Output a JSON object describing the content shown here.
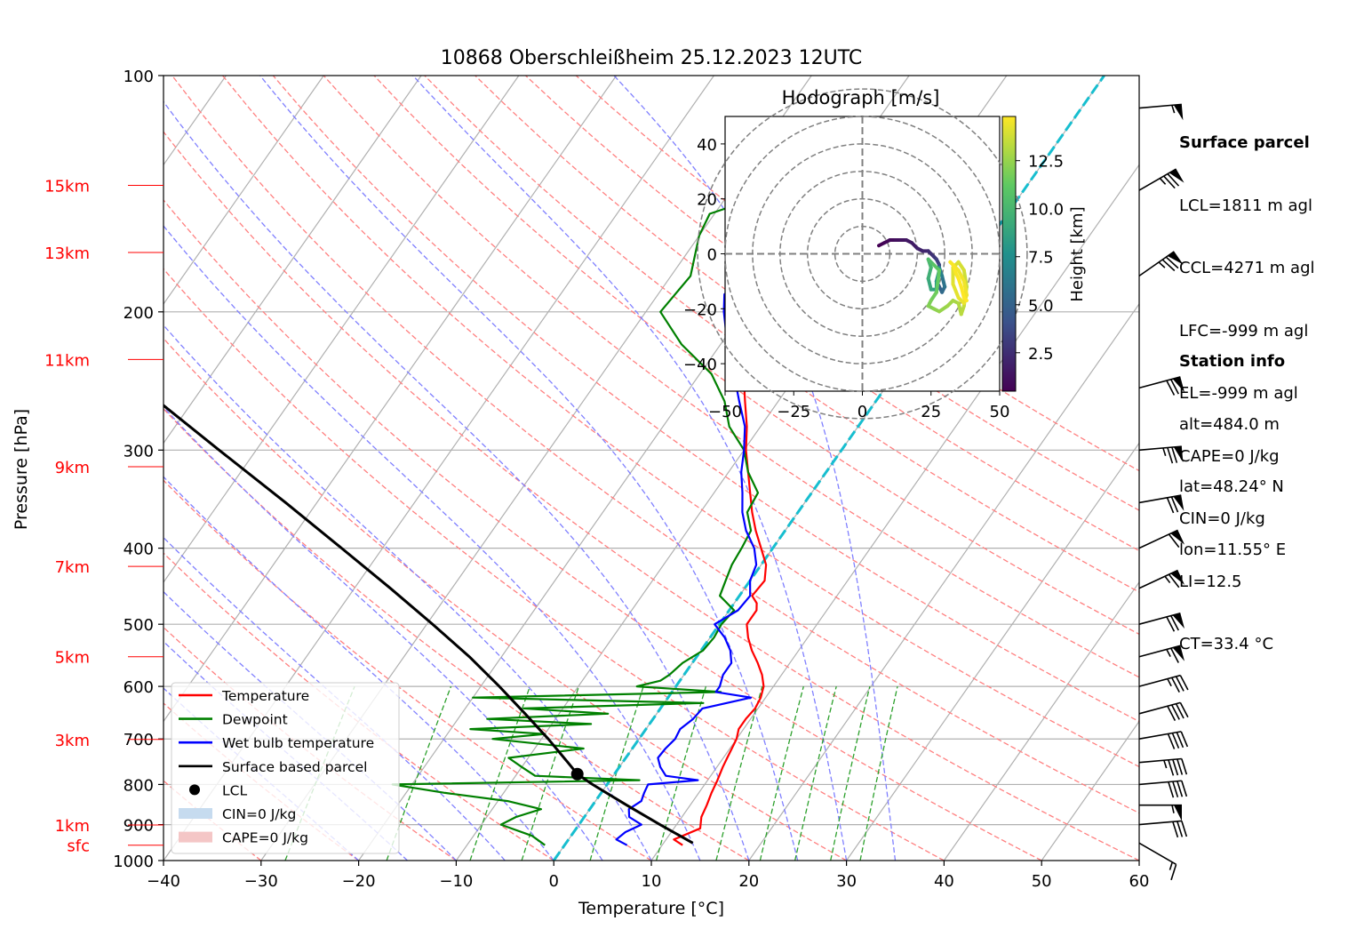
{
  "chart_data": {
    "type": "skew-t",
    "title": "10868 Oberschleißheim 25.12.2023 12UTC",
    "xlabel": "Temperature [°C]",
    "ylabel": "Pressure [hPa]",
    "xlim": [
      -40,
      60
    ],
    "ylim_hpa": [
      1000,
      100
    ],
    "x_ticks": [
      "−40",
      "−30",
      "−20",
      "−10",
      "0",
      "10",
      "20",
      "30",
      "40",
      "50",
      "60"
    ],
    "y_ticks": [
      "100",
      "200",
      "300",
      "400",
      "500",
      "600",
      "700",
      "800",
      "900",
      "1000"
    ],
    "height_labels": [
      {
        "label": "15km",
        "p": 138
      },
      {
        "label": "13km",
        "p": 168
      },
      {
        "label": "11km",
        "p": 230
      },
      {
        "label": "9km",
        "p": 315
      },
      {
        "label": "7km",
        "p": 422
      },
      {
        "label": "5km",
        "p": 550
      },
      {
        "label": "3km",
        "p": 701
      },
      {
        "label": "1km",
        "p": 901
      },
      {
        "label": "sfc",
        "p": 956
      }
    ],
    "legend": {
      "position": "lower-left",
      "entries": [
        "Temperature",
        "Dewpoint",
        "Wet bulb temperature",
        "Surface based parcel",
        "LCL",
        "CIN=0 J/kg",
        "CAPE=0 J/kg"
      ]
    },
    "colors": {
      "temperature": "#ff0000",
      "dewpoint": "#008000",
      "wetbulb": "#0000ff",
      "parcel": "#000000",
      "dry_adiabat": "#ff8080",
      "moist_adiabat": "#8080ff",
      "mixing_ratio": "#2ca02c",
      "isotherm_zero": "#17becf",
      "cin": "#c6dbef",
      "cape": "#f4c6c6"
    },
    "series": [
      {
        "name": "Temperature",
        "p": [
          956,
          940,
          910,
          880,
          850,
          820,
          790,
          760,
          740,
          720,
          700,
          680,
          660,
          640,
          620,
          600,
          580,
          560,
          540,
          520,
          500,
          480,
          470,
          460,
          440,
          420,
          400,
          380,
          360,
          340,
          320,
          300,
          280,
          260,
          240,
          230,
          220,
          210,
          200,
          190,
          180,
          170,
          160,
          150,
          140,
          135
        ],
        "t": [
          12.1,
          10.8,
          12.7,
          12.0,
          11.7,
          11.3,
          11.0,
          10.6,
          10.4,
          10.2,
          10.0,
          9.5,
          9.5,
          9.7,
          9.5,
          9.0,
          8.0,
          6.7,
          5.2,
          3.9,
          2.8,
          2.8,
          2.3,
          1.3,
          1.5,
          0.5,
          -1.2,
          -3.0,
          -4.7,
          -6.3,
          -8.0,
          -9.8,
          -11.4,
          -13.4,
          -15.5,
          -16.7,
          -18.0,
          -19.2,
          -20.6,
          -22.3,
          -22.4,
          -20.5,
          -18.6,
          -15.2,
          -8.3,
          -6.0
        ]
      },
      {
        "name": "Dewpoint",
        "p": [
          956,
          930,
          900,
          880,
          860,
          840,
          820,
          800,
          790,
          780,
          760,
          740,
          720,
          700,
          690,
          680,
          670,
          660,
          650,
          640,
          630,
          620,
          610,
          600,
          590,
          580,
          560,
          540,
          520,
          500,
          480,
          460,
          440,
          420,
          400,
          380,
          360,
          340,
          320,
          300,
          280,
          260,
          240,
          220,
          200,
          180,
          160,
          150,
          140,
          135
        ],
        "t": [
          -2.0,
          -4.0,
          -8.0,
          -7.0,
          -5.0,
          -9.0,
          -16.0,
          -22.0,
          3.0,
          -8.0,
          -10.0,
          -12.0,
          -5.0,
          -15.0,
          -10.0,
          -18.0,
          -6.0,
          -17.0,
          -5.0,
          -14.0,
          4.0,
          -20.0,
          5.0,
          -4.0,
          -2.0,
          -1.5,
          -1.0,
          0.2,
          0.4,
          0.2,
          0.5,
          -2.0,
          -2.5,
          -3.0,
          -3.2,
          -3.5,
          -5.2,
          -5.5,
          -8.0,
          -10.0,
          -13.2,
          -15.5,
          -18.8,
          -24.0,
          -28.5,
          -28.0,
          -30.0,
          -30.5,
          -25.0,
          -24.0
        ]
      },
      {
        "name": "Wet bulb temperature",
        "p": [
          956,
          940,
          920,
          900,
          880,
          860,
          840,
          820,
          800,
          790,
          780,
          760,
          740,
          720,
          700,
          680,
          660,
          640,
          620,
          610,
          600,
          580,
          560,
          540,
          520,
          500,
          480,
          460,
          440,
          420,
          400,
          380,
          360,
          340,
          320,
          300,
          280,
          260,
          240,
          220,
          200,
          190,
          180,
          170,
          160,
          150,
          140,
          135
        ],
        "t": [
          6.4,
          4.9,
          5.3,
          6.4,
          4.6,
          4.0,
          4.7,
          4.4,
          4.2,
          9.0,
          5.4,
          4.2,
          3.3,
          3.4,
          3.7,
          3.5,
          4.1,
          4.3,
          8.5,
          4.5,
          4.5,
          4.0,
          4.0,
          3.0,
          1.5,
          -0.5,
          0.9,
          1.1,
          0.0,
          -0.5,
          -1.9,
          -4.0,
          -5.7,
          -7.1,
          -8.7,
          -10.0,
          -11.6,
          -14.0,
          -16.5,
          -19.3,
          -22.0,
          -23.2,
          -22.3,
          -22.2,
          -21.2,
          -19.9,
          -12.4,
          -9.9
        ]
      },
      {
        "name": "Surface based parcel",
        "p": [
          950,
          900,
          850,
          800,
          776,
          750,
          700,
          650,
          600,
          550,
          500,
          450,
          400,
          350,
          300,
          250,
          200,
          170
        ],
        "t": [
          13.0,
          8.3,
          3.5,
          -1.5,
          -3.8,
          -5.6,
          -9.3,
          -13.5,
          -18.1,
          -23.3,
          -29.4,
          -36.3,
          -44.2,
          -53.2,
          -63.8,
          -76.2,
          -90.9,
          -101.0
        ]
      }
    ],
    "lcl": {
      "label": "LCL",
      "p": 776,
      "t": -3.8
    },
    "wind_barbs": [
      {
        "p": 950,
        "speed_kt": 15,
        "dir_deg": 300
      },
      {
        "p": 900,
        "speed_kt": 30,
        "dir_deg": 265
      },
      {
        "p": 850,
        "speed_kt": 55,
        "dir_deg": 270
      },
      {
        "p": 800,
        "speed_kt": 40,
        "dir_deg": 265
      },
      {
        "p": 750,
        "speed_kt": 45,
        "dir_deg": 265
      },
      {
        "p": 700,
        "speed_kt": 40,
        "dir_deg": 260
      },
      {
        "p": 650,
        "speed_kt": 40,
        "dir_deg": 255
      },
      {
        "p": 600,
        "speed_kt": 35,
        "dir_deg": 255
      },
      {
        "p": 550,
        "speed_kt": 65,
        "dir_deg": 255
      },
      {
        "p": 500,
        "speed_kt": 70,
        "dir_deg": 255
      },
      {
        "p": 450,
        "speed_kt": 65,
        "dir_deg": 245
      },
      {
        "p": 400,
        "speed_kt": 60,
        "dir_deg": 245
      },
      {
        "p": 350,
        "speed_kt": 70,
        "dir_deg": 260
      },
      {
        "p": 300,
        "speed_kt": 75,
        "dir_deg": 265
      },
      {
        "p": 250,
        "speed_kt": 70,
        "dir_deg": 255
      },
      {
        "p": 180,
        "speed_kt": 75,
        "dir_deg": 235
      },
      {
        "p": 140,
        "speed_kt": 75,
        "dir_deg": 240
      },
      {
        "p": 110,
        "speed_kt": 55,
        "dir_deg": 265
      }
    ],
    "hodograph": {
      "title": "Hodograph [m/s]",
      "xlim": [
        -50,
        50
      ],
      "ylim": [
        -50,
        50
      ],
      "ticks": [
        "−50",
        "−25",
        "0",
        "25",
        "50"
      ],
      "y_ticks": [
        "40",
        "20",
        "0",
        "−20",
        "−40"
      ],
      "colorbar_label": "Height [km]",
      "colorbar_ticks": [
        "2.5",
        "5.0",
        "7.5",
        "10.0",
        "12.5"
      ],
      "colorbar_range": [
        0.5,
        14.8
      ],
      "u": [
        6,
        8,
        10,
        12,
        14,
        16,
        18,
        20,
        22,
        24,
        25,
        26,
        27,
        28,
        28,
        27,
        28,
        29,
        30,
        29,
        28,
        28,
        27,
        27,
        25,
        24,
        25,
        24,
        26,
        28,
        27,
        25,
        24,
        26,
        28,
        31,
        33,
        35,
        36,
        37,
        38,
        37,
        35,
        33,
        33,
        35,
        37,
        38,
        37,
        35,
        33,
        32,
        33,
        34,
        35,
        36,
        37,
        38
      ],
      "v": [
        3,
        4,
        5,
        5,
        5,
        5,
        4,
        2,
        1,
        1,
        0,
        -1,
        -2,
        -4,
        -7,
        -10,
        -12,
        -14,
        -12,
        -8,
        -5,
        -6,
        -10,
        -13,
        -13,
        -9,
        -5,
        -2,
        -4,
        -6,
        -14,
        -17,
        -19,
        -20,
        -21,
        -19,
        -17,
        -18,
        -22,
        -19,
        -12,
        -6,
        -3,
        -5,
        -11,
        -16,
        -18,
        -15,
        -10,
        -6,
        -4,
        -3,
        -4,
        -7,
        -9,
        -12,
        -16,
        -17
      ],
      "z_km": [
        0.5,
        0.7,
        0.9,
        1.1,
        1.3,
        1.5,
        1.7,
        1.9,
        2.1,
        2.3,
        2.6,
        2.9,
        3.3,
        3.7,
        4.1,
        4.5,
        5.0,
        5.5,
        6.0,
        6.5,
        7.0,
        7.5,
        8.0,
        8.5,
        9.0,
        9.5,
        10.0,
        10.5,
        11.0,
        11.3,
        11.6,
        11.9,
        12.1,
        12.3,
        12.5,
        12.7,
        12.9,
        13.1,
        13.3,
        13.5,
        13.7,
        13.9,
        14.0,
        14.1,
        14.2,
        14.3,
        14.4,
        14.5,
        14.5,
        14.6,
        14.6,
        14.7,
        14.7,
        14.7,
        14.8,
        14.8,
        14.8,
        14.8
      ]
    }
  },
  "surface_parcel": {
    "title": "Surface parcel",
    "lines": [
      "LCL=1811 m agl",
      "CCL=4271 m agl",
      "LFC=-999 m agl",
      "EL=-999 m agl",
      "CAPE=0 J/kg",
      "CIN=0 J/kg",
      "LI=12.5",
      "CT=33.4 °C"
    ]
  },
  "station_info": {
    "title": "Station info",
    "lines": [
      "alt=484.0 m",
      "lat=48.24° N",
      "lon=11.55° E"
    ]
  }
}
